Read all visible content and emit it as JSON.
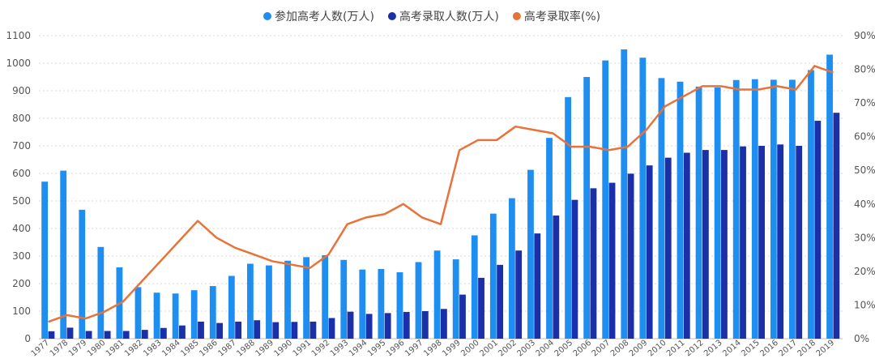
{
  "chart_data": {
    "type": "bar",
    "title": "",
    "xlabel": "",
    "ylabel": "",
    "ylim": [
      0,
      1100
    ],
    "y2lim": [
      0,
      90
    ],
    "y2_unit": "%",
    "grid": "horizontal-dashed",
    "legend_position": "top-center",
    "categories": [
      "1977",
      "1978",
      "1979",
      "1980",
      "1981",
      "1982",
      "1983",
      "1984",
      "1985",
      "1986",
      "1987",
      "1988",
      "1989",
      "1990",
      "1991",
      "1992",
      "1993",
      "1994",
      "1995",
      "1996",
      "1997",
      "1998",
      "1999",
      "2000",
      "2001",
      "2002",
      "2003",
      "2004",
      "2005",
      "2006",
      "2007",
      "2008",
      "2009",
      "2010",
      "2011",
      "2012",
      "2013",
      "2014",
      "2015",
      "2016",
      "2017",
      "2018",
      "2019"
    ],
    "y_ticks": [
      0,
      100,
      200,
      300,
      400,
      500,
      600,
      700,
      800,
      900,
      1000,
      1100
    ],
    "y2_ticks": [
      0,
      10,
      20,
      30,
      40,
      50,
      60,
      70,
      80,
      90
    ],
    "series": [
      {
        "name": "参加高考人数(万人)",
        "type": "bar",
        "axis": "left",
        "color": "#1f8ef1",
        "values": [
          570,
          610,
          468,
          333,
          259,
          187,
          167,
          164,
          176,
          191,
          228,
          272,
          266,
          283,
          296,
          303,
          286,
          251,
          253,
          241,
          278,
          320,
          288,
          375,
          454,
          510,
          613,
          729,
          877,
          950,
          1010,
          1050,
          1020,
          946,
          933,
          915,
          912,
          939,
          942,
          940,
          940,
          975,
          1031
        ]
      },
      {
        "name": "高考录取人数(万人)",
        "type": "bar",
        "axis": "left",
        "color": "#1a2fa8",
        "values": [
          27,
          40,
          28,
          28,
          28,
          32,
          39,
          48,
          62,
          57,
          62,
          67,
          60,
          61,
          62,
          75,
          98,
          90,
          93,
          97,
          100,
          108,
          160,
          221,
          268,
          320,
          382,
          447,
          504,
          546,
          566,
          599,
          629,
          657,
          675,
          685,
          685,
          698,
          700,
          705,
          700,
          791,
          820
        ]
      },
      {
        "name": "高考录取率(%)",
        "type": "line",
        "axis": "right",
        "color": "#e8733a",
        "values": [
          5,
          7,
          6,
          8,
          11,
          17,
          23,
          29,
          35,
          30,
          27,
          25,
          23,
          22,
          21,
          25,
          34,
          36,
          37,
          40,
          36,
          34,
          56,
          59,
          59,
          63,
          62,
          61,
          57,
          57,
          56,
          57,
          62,
          69,
          72,
          75,
          75,
          74,
          74,
          75,
          74,
          81,
          79
        ]
      }
    ]
  }
}
